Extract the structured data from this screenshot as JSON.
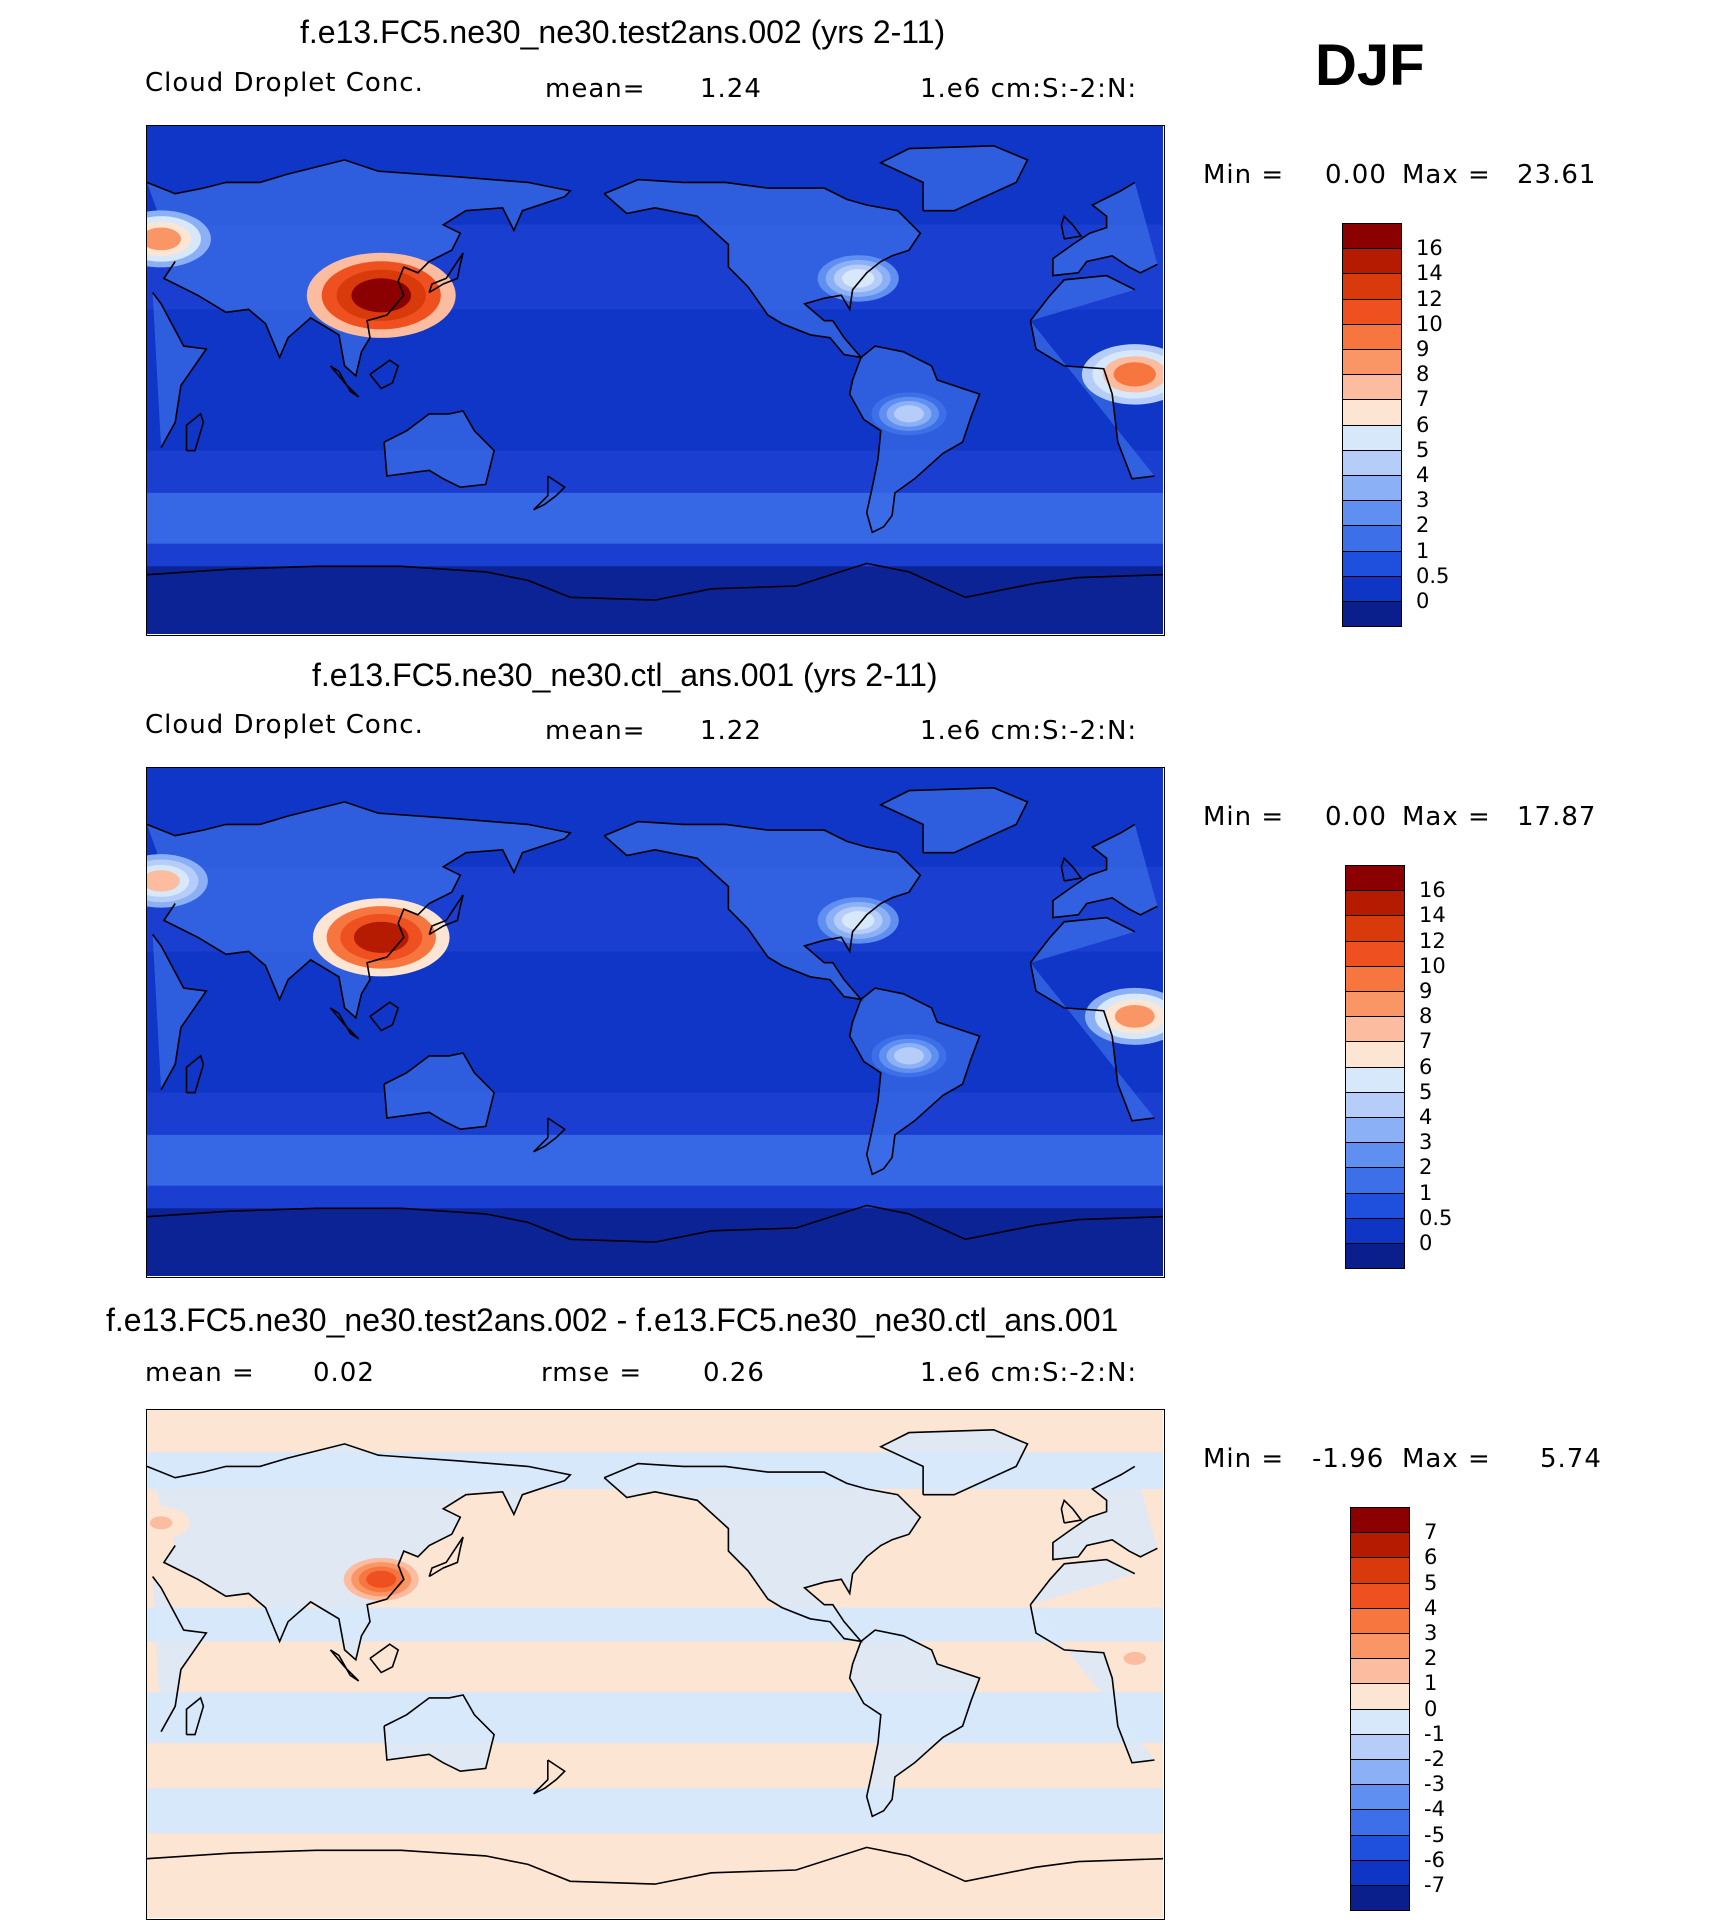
{
  "season": "DJF",
  "panels": [
    {
      "title": "f.e13.FC5.ne30_ne30.test2ans.002 (yrs 2-11)",
      "variable": "Cloud Droplet Conc.",
      "stat_label": "mean=",
      "stat_value": "1.24",
      "units": "1.e6 cm:S:-2:N:",
      "min_label": "Min =",
      "min_value": "0.00",
      "max_label": "Max =",
      "max_value": "23.61",
      "colorbar": {
        "labels": [
          "16",
          "14",
          "12",
          "10",
          "9",
          "8",
          "7",
          "6",
          "5",
          "4",
          "3",
          "2",
          "1",
          "0.5",
          "0"
        ],
        "colors": [
          "#8b0000",
          "#b51b00",
          "#d93a0c",
          "#ef5020",
          "#f7763f",
          "#fa9565",
          "#fbbca0",
          "#fde5d4",
          "#d8e8fb",
          "#b5cdf8",
          "#8bb0f5",
          "#5f8ff0",
          "#3c6fe8",
          "#1f50dd",
          "#0e35c4",
          "#0a1e8c"
        ]
      },
      "map_data": {
        "background": "#1a3fd0",
        "hotspots": [
          {
            "region": "East China",
            "lon": 113,
            "lat": 30,
            "level": 16
          },
          {
            "region": "Europe",
            "lon": 35,
            "lat": 50,
            "level": 8
          },
          {
            "region": "Central Africa",
            "lon": 20,
            "lat": 2,
            "level": 9
          },
          {
            "region": "Eastern US",
            "lon": -78,
            "lat": 36,
            "level": 5
          },
          {
            "region": "South America",
            "lon": -60,
            "lat": -12,
            "level": 4
          }
        ]
      }
    },
    {
      "title": "f.e13.FC5.ne30_ne30.ctl_ans.001 (yrs 2-11)",
      "variable": "Cloud Droplet Conc.",
      "stat_label": "mean=",
      "stat_value": "1.22",
      "units": "1.e6 cm:S:-2:N:",
      "min_label": "Min =",
      "min_value": "0.00",
      "max_label": "Max =",
      "max_value": "17.87",
      "colorbar": {
        "labels": [
          "16",
          "14",
          "12",
          "10",
          "9",
          "8",
          "7",
          "6",
          "5",
          "4",
          "3",
          "2",
          "1",
          "0.5",
          "0"
        ],
        "colors": [
          "#8b0000",
          "#b51b00",
          "#d93a0c",
          "#ef5020",
          "#f7763f",
          "#fa9565",
          "#fbbca0",
          "#fde5d4",
          "#d8e8fb",
          "#b5cdf8",
          "#8bb0f5",
          "#5f8ff0",
          "#3c6fe8",
          "#1f50dd",
          "#0e35c4",
          "#0a1e8c"
        ]
      },
      "map_data": {
        "background": "#1a3fd0",
        "hotspots": [
          {
            "region": "East China",
            "lon": 113,
            "lat": 30,
            "level": 14
          },
          {
            "region": "Europe",
            "lon": 35,
            "lat": 50,
            "level": 7
          },
          {
            "region": "Central Africa",
            "lon": 20,
            "lat": 2,
            "level": 8
          },
          {
            "region": "Eastern US",
            "lon": -78,
            "lat": 36,
            "level": 5
          },
          {
            "region": "South America",
            "lon": -60,
            "lat": -12,
            "level": 4
          }
        ]
      }
    },
    {
      "title": "f.e13.FC5.ne30_ne30.test2ans.002 - f.e13.FC5.ne30_ne30.ctl_ans.001",
      "mean_label": "mean =",
      "mean_value": "0.02",
      "rmse_label": "rmse =",
      "rmse_value": "0.26",
      "units": "1.e6 cm:S:-2:N:",
      "min_label": "Min =",
      "min_value": "-1.96",
      "max_label": "Max =",
      "max_value": "5.74",
      "colorbar": {
        "labels": [
          "7",
          "6",
          "5",
          "4",
          "3",
          "2",
          "1",
          "0",
          "-1",
          "-2",
          "-3",
          "-4",
          "-5",
          "-6",
          "-7"
        ],
        "colors": [
          "#8b0000",
          "#b51b00",
          "#d93a0c",
          "#ef5020",
          "#f7763f",
          "#fa9565",
          "#fbbca0",
          "#fde5d4",
          "#d8e8fb",
          "#b5cdf8",
          "#8bb0f5",
          "#5f8ff0",
          "#3c6fe8",
          "#1f50dd",
          "#0e35c4",
          "#0a1e8c"
        ]
      },
      "map_data": {
        "background": "#fde5d4",
        "hotspots": [
          {
            "region": "East China",
            "lon": 113,
            "lat": 30,
            "level": 4
          },
          {
            "region": "Europe",
            "lon": 35,
            "lat": 50,
            "level": 1
          },
          {
            "region": "Central Africa",
            "lon": 20,
            "lat": 2,
            "level": 1
          }
        ]
      }
    }
  ]
}
